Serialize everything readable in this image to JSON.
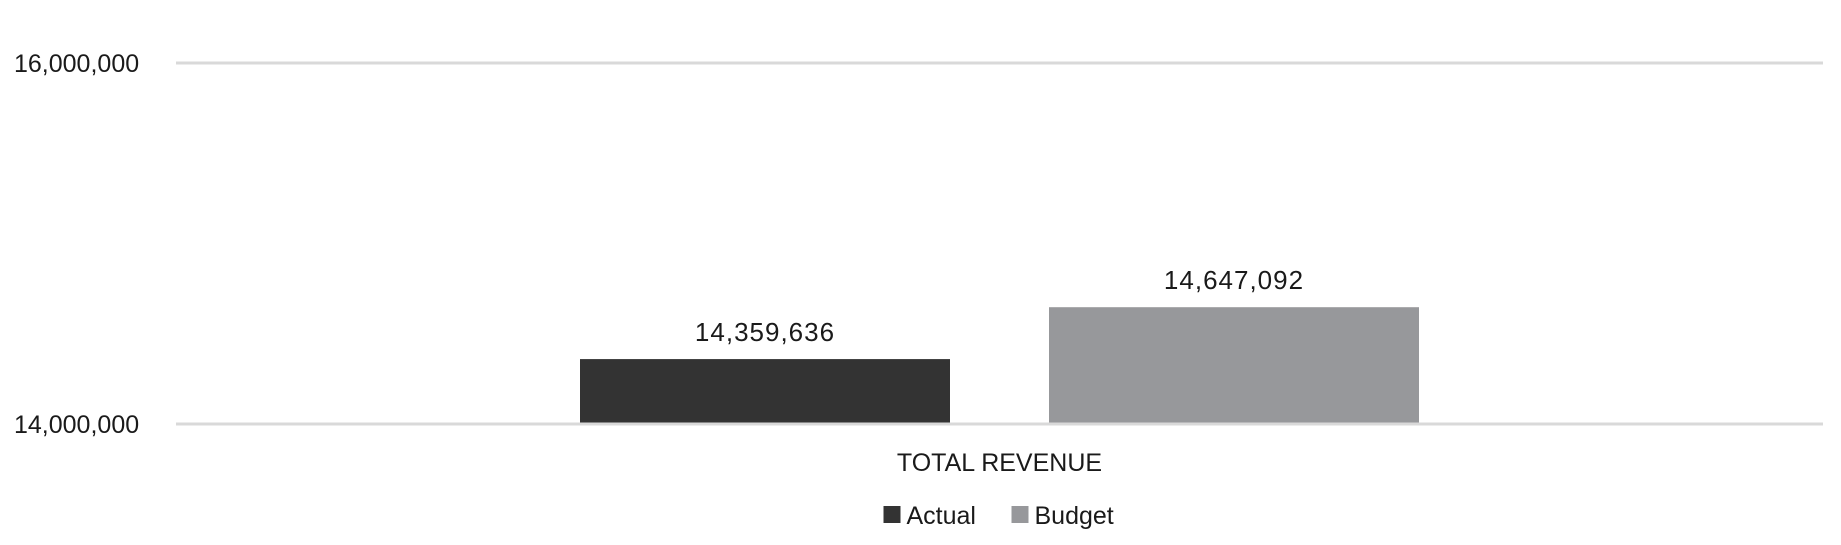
{
  "chart_data": {
    "type": "bar",
    "categories": [
      "TOTAL REVENUE"
    ],
    "series": [
      {
        "name": "Actual",
        "values": [
          14359636
        ],
        "color": "#333333",
        "label": "14,359,636"
      },
      {
        "name": "Budget",
        "values": [
          14647092
        ],
        "color": "#97989b",
        "label": "14,647,092"
      }
    ],
    "ylim": [
      14000000,
      16000000
    ],
    "yticks": [
      {
        "value": 16000000,
        "label": "16,000,000"
      },
      {
        "value": 14000000,
        "label": "14,000,000"
      }
    ],
    "gridlines": true,
    "gridline_color": "#d9d9d9",
    "legend": "bottom-center",
    "title": "",
    "xlabel": "",
    "ylabel": ""
  }
}
